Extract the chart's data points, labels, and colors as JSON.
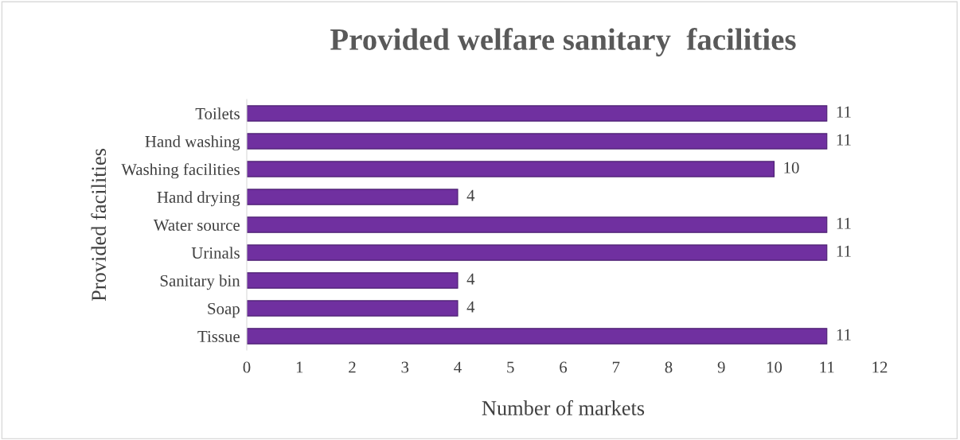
{
  "chart_data": {
    "type": "bar",
    "orientation": "horizontal",
    "title": "Provided welfare sanitary  facilities",
    "xlabel": "Number of markets",
    "ylabel": "Provided facilities",
    "categories": [
      "Toilets",
      "Hand washing",
      "Washing facilities",
      "Hand drying",
      "Water source",
      "Urinals",
      "Sanitary bin",
      "Soap",
      "Tissue"
    ],
    "values": [
      11,
      11,
      10,
      4,
      11,
      11,
      4,
      4,
      11
    ],
    "color": "#7030a0",
    "xlim": [
      0,
      12
    ],
    "xticks": [
      0,
      1,
      2,
      3,
      4,
      5,
      6,
      7,
      8,
      9,
      10,
      11,
      12
    ],
    "grid": false,
    "data_labels": true
  }
}
